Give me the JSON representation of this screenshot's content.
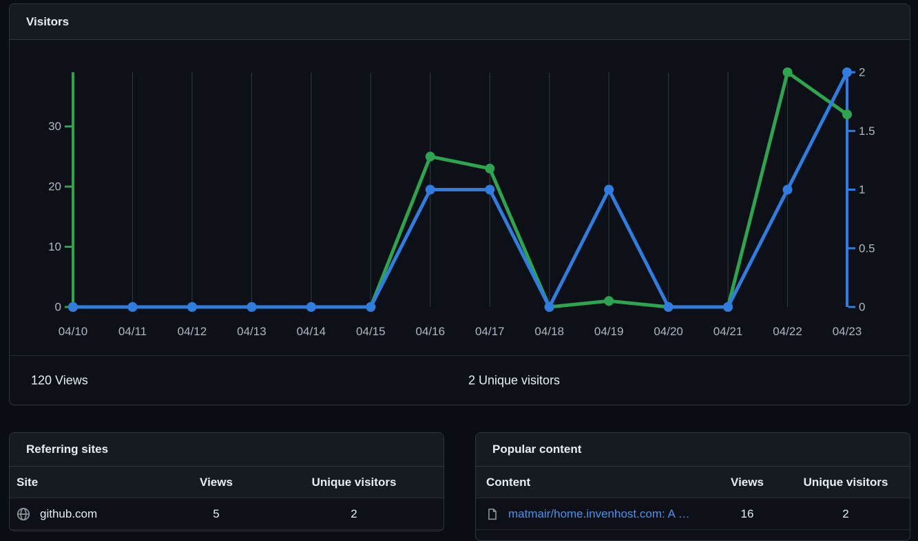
{
  "visitors_card": {
    "title": "Visitors",
    "views_total": "120 Views",
    "unique_total": "2 Unique visitors"
  },
  "chart_data": {
    "type": "line",
    "title": "Visitors",
    "x_labels": [
      "04/10",
      "04/11",
      "04/12",
      "04/13",
      "04/14",
      "04/15",
      "04/16",
      "04/17",
      "04/18",
      "04/19",
      "04/20",
      "04/21",
      "04/22",
      "04/23"
    ],
    "series": [
      {
        "name": "Views",
        "axis": "left",
        "color": "#2da44e",
        "values": [
          0,
          0,
          0,
          0,
          0,
          0,
          25,
          23,
          0,
          1,
          0,
          0,
          39,
          32
        ]
      },
      {
        "name": "Unique visitors",
        "axis": "right",
        "color": "#2f7de1",
        "values": [
          0,
          0,
          0,
          0,
          0,
          0,
          1,
          1,
          0,
          1,
          0,
          0,
          1,
          2
        ]
      }
    ],
    "left_axis": {
      "ticks": [
        0,
        10,
        20,
        30
      ],
      "max": 39,
      "color": "#2da44e"
    },
    "right_axis": {
      "ticks": [
        0,
        0.5,
        1,
        1.5,
        2
      ],
      "max": 2,
      "color": "#2f7de1"
    },
    "grid": "vertical",
    "tick_label_color": "#aeb7c2"
  },
  "referring_sites": {
    "title": "Referring sites",
    "columns": [
      "Site",
      "Views",
      "Unique visitors"
    ],
    "rows": [
      {
        "site": "github.com",
        "views": "5",
        "unique": "2"
      }
    ]
  },
  "popular_content": {
    "title": "Popular content",
    "columns": [
      "Content",
      "Views",
      "Unique visitors"
    ],
    "rows": [
      {
        "content": "matmair/home.invenhost.com: A …",
        "views": "16",
        "unique": "2"
      }
    ]
  },
  "colors": {
    "views_green": "#2da44e",
    "unique_blue": "#2f7de1",
    "link_blue": "#4793f1",
    "card_bg": "#0d1117",
    "header_bg": "#161b22",
    "border": "#30363d"
  }
}
